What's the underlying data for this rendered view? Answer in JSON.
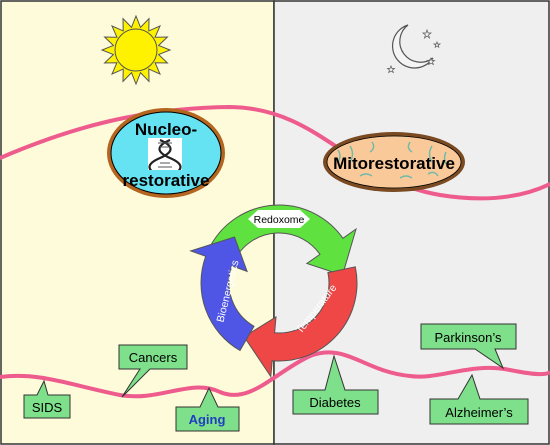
{
  "panels": {
    "day": {
      "color": "#fdfbd9"
    },
    "night": {
      "color": "#efefef"
    }
  },
  "nodes": {
    "nucleo": {
      "line1": "Nucleo-",
      "line2": "restorative",
      "fill": "#66e3f2",
      "border": "#b4651f"
    },
    "mito": {
      "label": "Mitorestorative",
      "fill": "#f9c99a",
      "border": "#7a4a22"
    }
  },
  "cycle": {
    "redoxome": "Redoxome",
    "temperature": "Temperature",
    "bioenergetics": "Bioenergetics",
    "colors": {
      "green": "#5fe23f",
      "red": "#ef4646",
      "blue": "#4f56e6"
    }
  },
  "callouts": {
    "sids": "SIDS",
    "cancers": "Cancers",
    "aging": "Aging",
    "diabetes": "Diabetes",
    "parkinsons": "Parkinson’s",
    "alzheimers": "Alzheimer’s"
  },
  "colors": {
    "curve": "#ee5b8d",
    "callout": "#7ee08a",
    "aging_text": "#1f3fbf",
    "sun": "#fff200",
    "moon": "#f4f4f4"
  }
}
